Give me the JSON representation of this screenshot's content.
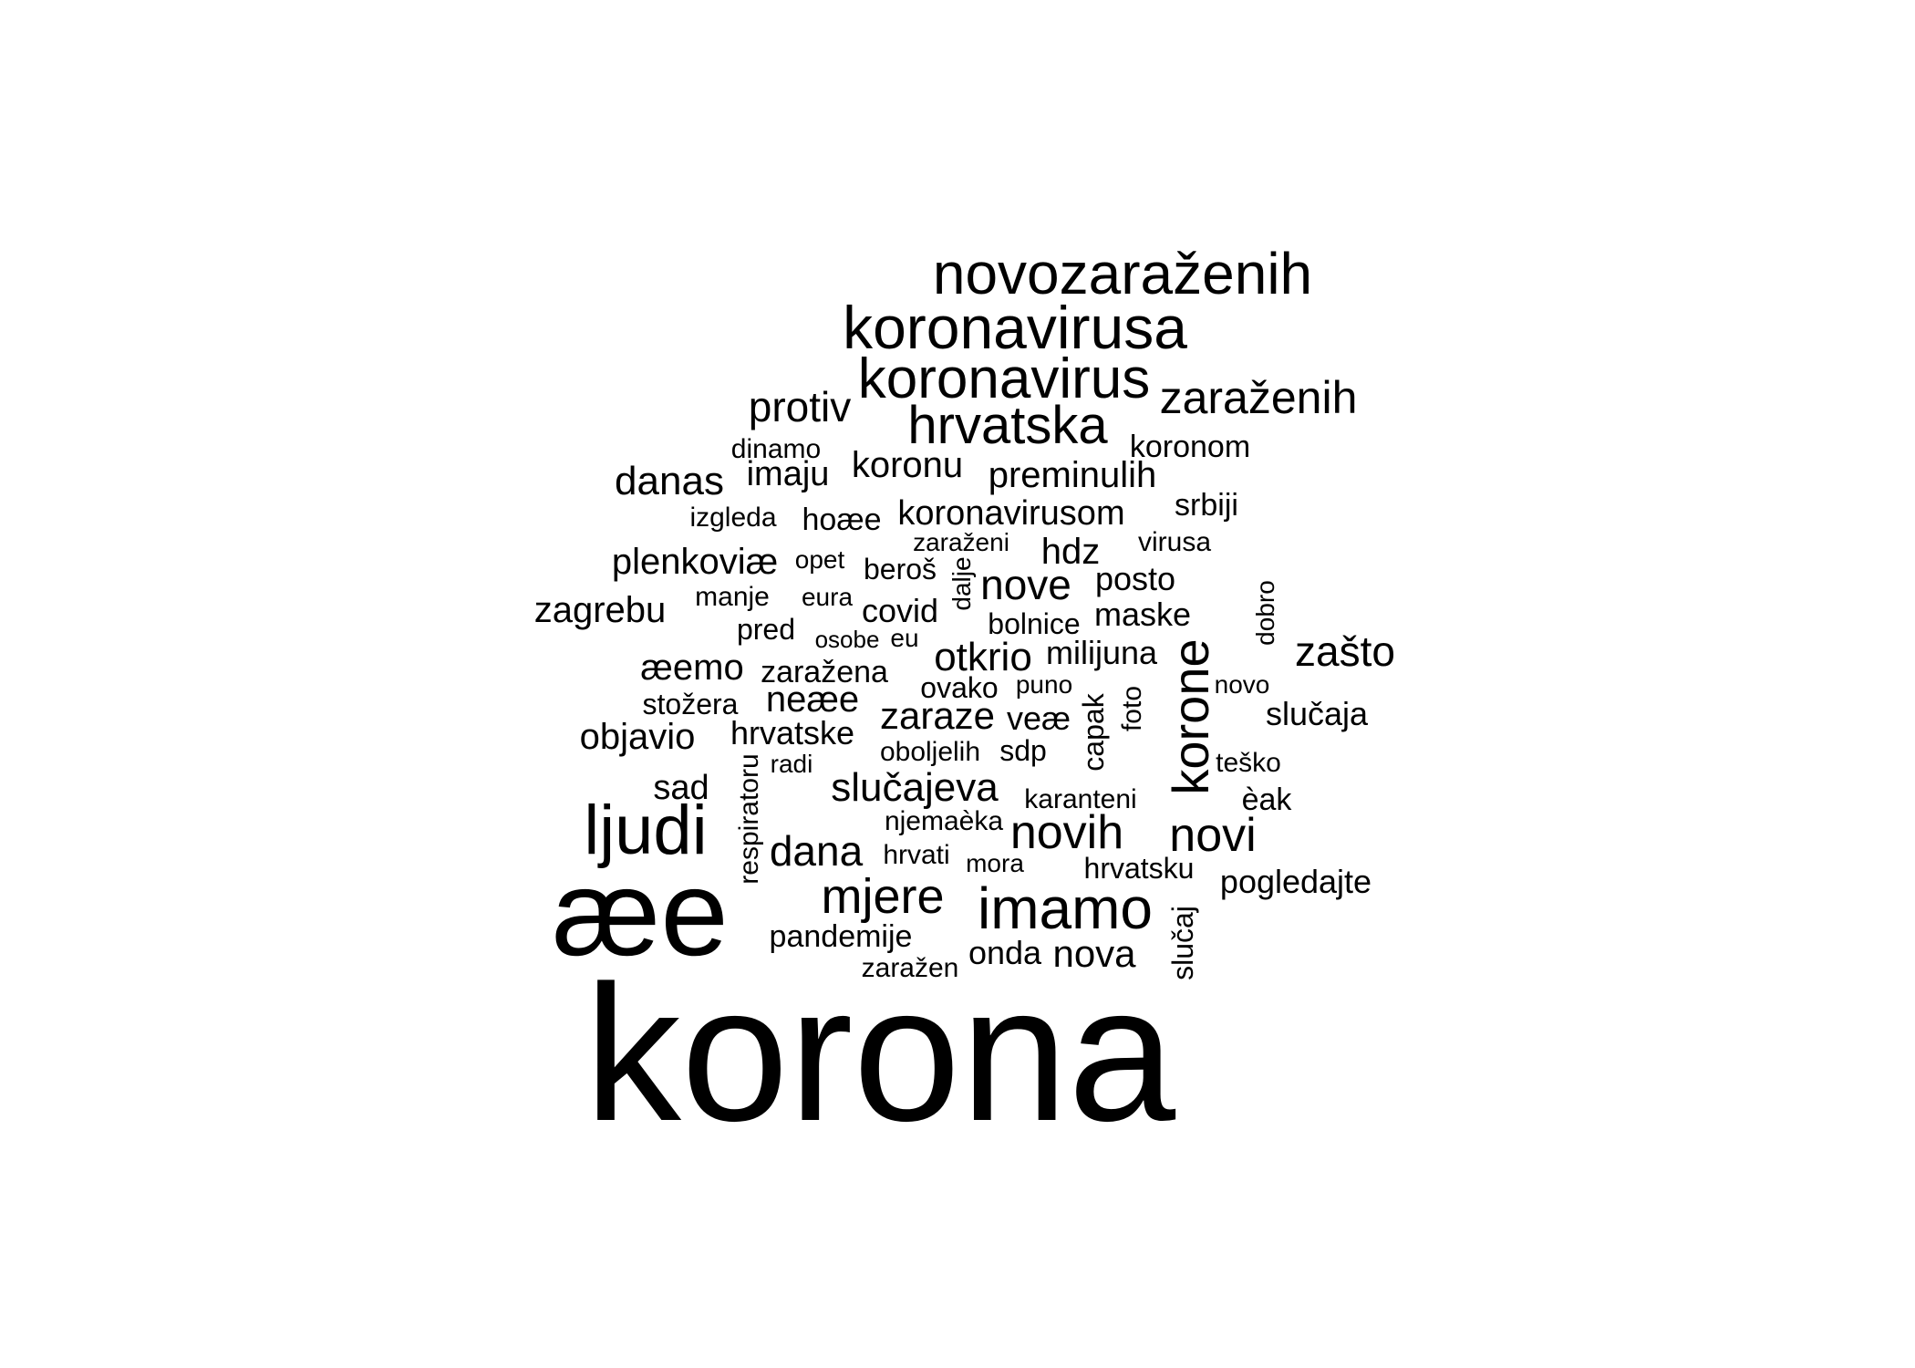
{
  "text_color": "#000000",
  "background_color": "#ffffff",
  "words": [
    {
      "text": "korona",
      "rank": 1
    },
    {
      "text": "æe",
      "rank": 2
    },
    {
      "text": "ljudi",
      "rank": 3
    },
    {
      "text": "koronavirusa",
      "rank": 4
    },
    {
      "text": "novozaraženih",
      "rank": 5
    },
    {
      "text": "koronavirus",
      "rank": 6
    },
    {
      "text": "imamo",
      "rank": 7
    },
    {
      "text": "hrvatska",
      "rank": 8
    },
    {
      "text": "korone",
      "rank": 9
    },
    {
      "text": "mjere",
      "rank": 10
    },
    {
      "text": "zaraženih",
      "rank": 11
    },
    {
      "text": "novih",
      "rank": 12
    },
    {
      "text": "novi",
      "rank": 13
    },
    {
      "text": "protiv",
      "rank": 14
    },
    {
      "text": "zašto",
      "rank": 15
    },
    {
      "text": "dana",
      "rank": 16
    },
    {
      "text": "danas",
      "rank": 17
    },
    {
      "text": "nove",
      "rank": 18
    },
    {
      "text": "otkrio",
      "rank": 19
    },
    {
      "text": "slučajeva",
      "rank": 20
    },
    {
      "text": "nova",
      "rank": 21
    },
    {
      "text": "zagrebu",
      "rank": 22
    },
    {
      "text": "zaraze",
      "rank": 23
    },
    {
      "text": "koronu",
      "rank": 24
    },
    {
      "text": "preminulih",
      "rank": 25
    },
    {
      "text": "plenkoviæ",
      "rank": 26
    },
    {
      "text": "objavio",
      "rank": 27
    },
    {
      "text": "koronavirusom",
      "rank": 28
    },
    {
      "text": "neæe",
      "rank": 29
    },
    {
      "text": "hdz",
      "rank": 30
    },
    {
      "text": "æemo",
      "rank": 31
    },
    {
      "text": "sad",
      "rank": 32
    },
    {
      "text": "imaju",
      "rank": 33
    },
    {
      "text": "pogledajte",
      "rank": 34
    },
    {
      "text": "hrvatske",
      "rank": 35
    },
    {
      "text": "maske",
      "rank": 36
    },
    {
      "text": "milijuna",
      "rank": 37
    },
    {
      "text": "slučaja",
      "rank": 38
    },
    {
      "text": "onda",
      "rank": 39
    },
    {
      "text": "pandemije",
      "rank": 40
    },
    {
      "text": "posto",
      "rank": 41
    },
    {
      "text": "covid",
      "rank": 42
    },
    {
      "text": "veæ",
      "rank": 43
    },
    {
      "text": "koronom",
      "rank": 44
    },
    {
      "text": "srbiji",
      "rank": 45
    },
    {
      "text": "zaražena",
      "rank": 46
    },
    {
      "text": "stožera",
      "rank": 47
    },
    {
      "text": "bolnice",
      "rank": 48
    },
    {
      "text": "beroš",
      "rank": 49
    },
    {
      "text": "hoæe",
      "rank": 50
    },
    {
      "text": "oboljelih",
      "rank": 51
    },
    {
      "text": "sdp",
      "rank": 52
    },
    {
      "text": "hrvatsku",
      "rank": 53
    },
    {
      "text": "èak",
      "rank": 54
    },
    {
      "text": "slučaj",
      "rank": 55
    },
    {
      "text": "respiratoru",
      "rank": 56
    },
    {
      "text": "capak",
      "rank": 57
    },
    {
      "text": "ovako",
      "rank": 58
    },
    {
      "text": "virusa",
      "rank": 59
    },
    {
      "text": "dinamo",
      "rank": 60
    },
    {
      "text": "manje",
      "rank": 61
    },
    {
      "text": "pred",
      "rank": 62
    },
    {
      "text": "izgleda",
      "rank": 63
    },
    {
      "text": "njemaèka",
      "rank": 64
    },
    {
      "text": "karanteni",
      "rank": 65
    },
    {
      "text": "teško",
      "rank": 66
    },
    {
      "text": "zaražen",
      "rank": 67
    },
    {
      "text": "hrvati",
      "rank": 68
    },
    {
      "text": "zaraženi",
      "rank": 69
    },
    {
      "text": "dalje",
      "rank": 70
    },
    {
      "text": "foto",
      "rank": 71
    },
    {
      "text": "dobro",
      "rank": 72
    },
    {
      "text": "novo",
      "rank": 73
    },
    {
      "text": "opet",
      "rank": 74
    },
    {
      "text": "eura",
      "rank": 75
    },
    {
      "text": "osobe",
      "rank": 76
    },
    {
      "text": "eu",
      "rank": 77
    },
    {
      "text": "puno",
      "rank": 78
    },
    {
      "text": "mora",
      "rank": 79
    },
    {
      "text": "radi",
      "rank": 80
    }
  ]
}
